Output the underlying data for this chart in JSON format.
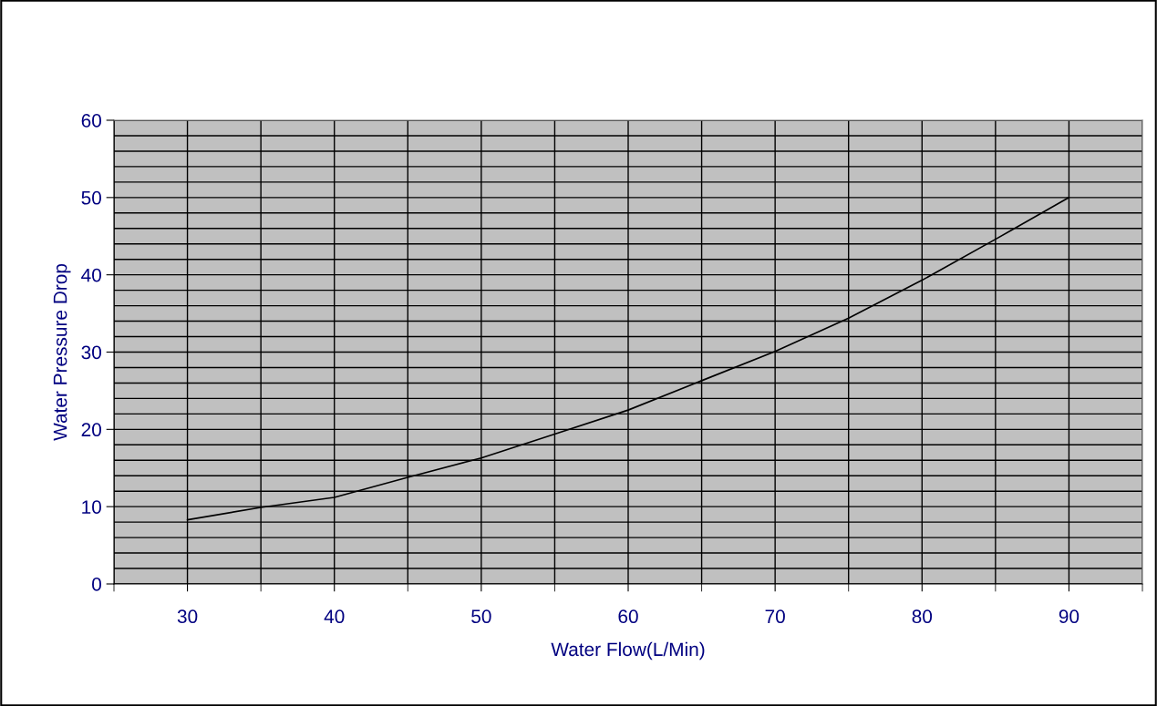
{
  "chart_data": {
    "type": "line",
    "xlabel": "Water Flow(L/Min)",
    "ylabel": "Water Pressure Drop",
    "x": [
      30,
      35,
      40,
      45,
      50,
      55,
      60,
      65,
      70,
      75,
      80,
      85,
      90
    ],
    "series": [
      {
        "color": "#000000",
        "values": [
          8.3,
          9.9,
          11.2,
          13.8,
          16.3,
          19.4,
          22.5,
          26.3,
          30.1,
          34.4,
          39.3,
          44.6,
          50
        ]
      }
    ],
    "xlim": [
      25,
      95
    ],
    "ylim": [
      0,
      60
    ],
    "xticks": [
      {
        "value": 25,
        "label": null
      },
      30,
      {
        "value": 35,
        "label": null
      },
      40,
      {
        "value": 45,
        "label": null
      },
      50,
      {
        "value": 55,
        "label": null
      },
      60,
      {
        "value": 65,
        "label": null
      },
      70,
      {
        "value": 75,
        "label": null
      },
      80,
      {
        "value": 85,
        "label": null
      },
      90,
      {
        "value": 95,
        "label": null
      }
    ],
    "yticks": [
      0,
      {
        "value": 2,
        "label": null
      },
      {
        "value": 4,
        "label": null
      },
      {
        "value": 6,
        "label": null
      },
      {
        "value": 8,
        "label": null
      },
      10,
      {
        "value": 12,
        "label": null
      },
      {
        "value": 14,
        "label": null
      },
      {
        "value": 16,
        "label": null
      },
      {
        "value": 18,
        "label": null
      },
      20,
      {
        "value": 22,
        "label": null
      },
      {
        "value": 24,
        "label": null
      },
      {
        "value": 26,
        "label": null
      },
      {
        "value": 28,
        "label": null
      },
      30,
      {
        "value": 32,
        "label": null
      },
      {
        "value": 34,
        "label": null
      },
      {
        "value": 36,
        "label": null
      },
      {
        "value": 38,
        "label": null
      },
      40,
      {
        "value": 42,
        "label": null
      },
      {
        "value": 44,
        "label": null
      },
      {
        "value": 46,
        "label": null
      },
      {
        "value": 48,
        "label": null
      },
      50,
      {
        "value": 52,
        "label": null
      },
      {
        "value": 54,
        "label": null
      },
      {
        "value": 56,
        "label": null
      },
      {
        "value": 58,
        "label": null
      },
      60
    ],
    "grid": true,
    "marker": "none",
    "line_style": "solid"
  }
}
